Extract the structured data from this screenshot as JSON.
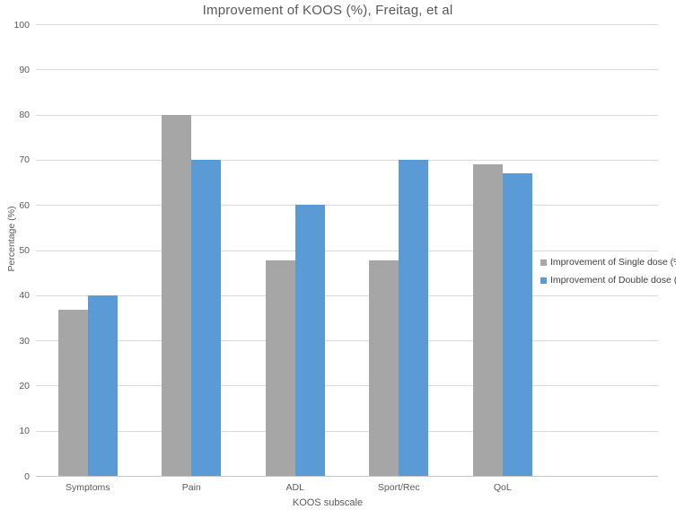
{
  "title": "Improvement of KOOS (%), Freitag, et al",
  "colors": {
    "single_dose": "#A6A6A6",
    "double_dose": "#5B9BD5",
    "gridline": "#D9D9D9",
    "axis_line": "#C6C6C6",
    "axis_text": "#595959",
    "legend_text": "#404040"
  },
  "chart_data": {
    "type": "bar",
    "title": "Improvement of KOOS (%), Freitag, et al",
    "categories": [
      "Symptoms",
      "Pain",
      "ADL",
      "Sport/Rec",
      "QoL"
    ],
    "series": [
      {
        "name": "Improvement of Single dose (%)",
        "color": "#A6A6A6",
        "values": [
          36.7,
          80,
          47.8,
          47.8,
          69
        ]
      },
      {
        "name": "Improvement of Double dose (%)",
        "color": "#5B9BD5",
        "values": [
          40,
          70,
          60,
          70,
          67
        ]
      }
    ],
    "xlabel": "KOOS subscale",
    "ylabel": "Percentage (%)",
    "ylim": [
      0,
      100
    ],
    "ytick_step": 10,
    "grid": true,
    "legend_position": "right-overlay",
    "x_slots": 6
  }
}
